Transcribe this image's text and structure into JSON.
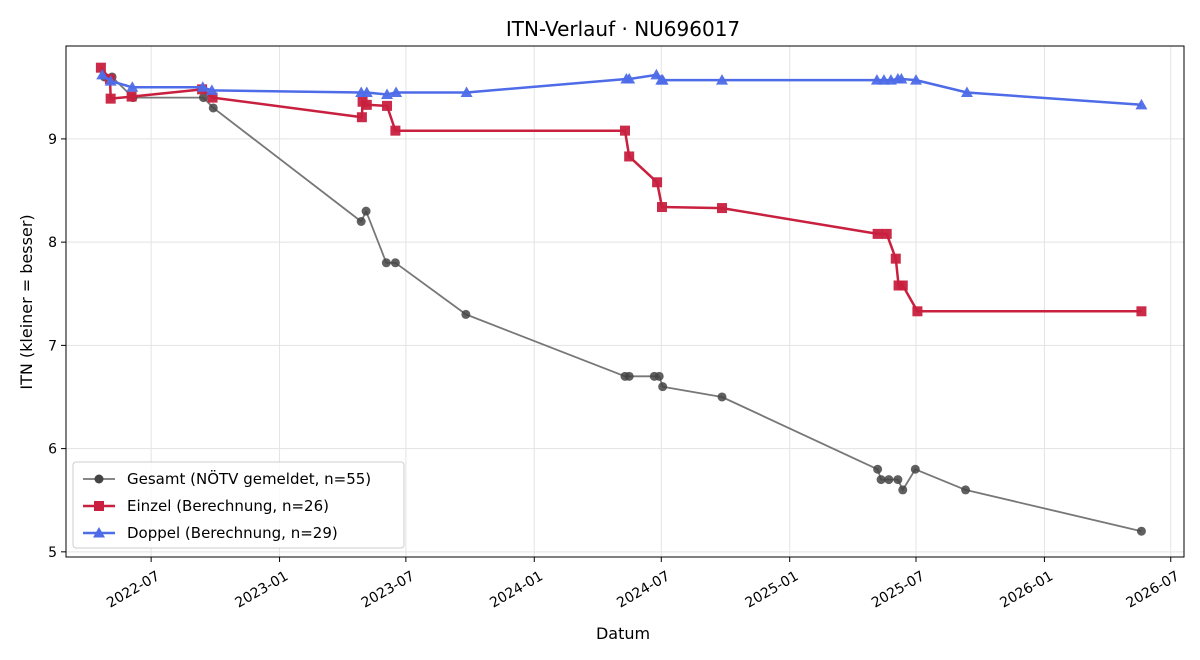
{
  "chart_data": {
    "type": "line",
    "title": "ITN-Verlauf · NU696017",
    "xlabel": "Datum",
    "ylabel": "ITN  (kleiner = besser)",
    "xlim": [
      "2022-03-01",
      "2026-07-20"
    ],
    "ylim": [
      4.95,
      9.9
    ],
    "x_ticks": [
      "2022-07",
      "2023-01",
      "2023-07",
      "2024-01",
      "2024-07",
      "2025-01",
      "2025-07",
      "2026-01",
      "2026-07"
    ],
    "y_ticks": [
      5,
      6,
      7,
      8,
      9
    ],
    "grid": true,
    "legend_position": "lower-left",
    "series": [
      {
        "name": "Gesamt (NÖTV gemeldet, n=55)",
        "color": "#444444",
        "marker": "circle",
        "points": [
          {
            "x": "2022-04-25",
            "y": 9.6
          },
          {
            "x": "2022-05-06",
            "y": 9.6
          },
          {
            "x": "2022-06-05",
            "y": 9.4
          },
          {
            "x": "2022-09-14",
            "y": 9.4
          },
          {
            "x": "2022-09-28",
            "y": 9.3
          },
          {
            "x": "2023-04-28",
            "y": 8.2
          },
          {
            "x": "2023-05-05",
            "y": 8.3
          },
          {
            "x": "2023-06-03",
            "y": 7.8
          },
          {
            "x": "2023-06-16",
            "y": 7.8
          },
          {
            "x": "2023-09-25",
            "y": 7.3
          },
          {
            "x": "2024-05-10",
            "y": 6.7
          },
          {
            "x": "2024-05-16",
            "y": 6.7
          },
          {
            "x": "2024-06-21",
            "y": 6.7
          },
          {
            "x": "2024-06-28",
            "y": 6.7
          },
          {
            "x": "2024-07-03",
            "y": 6.6
          },
          {
            "x": "2024-09-26",
            "y": 6.5
          },
          {
            "x": "2025-05-07",
            "y": 5.8
          },
          {
            "x": "2025-05-12",
            "y": 5.7
          },
          {
            "x": "2025-05-23",
            "y": 5.7
          },
          {
            "x": "2025-06-05",
            "y": 5.7
          },
          {
            "x": "2025-06-12",
            "y": 5.6
          },
          {
            "x": "2025-06-30",
            "y": 5.8
          },
          {
            "x": "2025-09-10",
            "y": 5.6
          },
          {
            "x": "2026-05-20",
            "y": 5.2
          }
        ]
      },
      {
        "name": "Einzel (Berechnung, n=26)",
        "color": "#c8203e",
        "marker": "square",
        "points": [
          {
            "x": "2022-04-20",
            "y": 9.69
          },
          {
            "x": "2022-05-03",
            "y": 9.58
          },
          {
            "x": "2022-05-04",
            "y": 9.39
          },
          {
            "x": "2022-06-03",
            "y": 9.41
          },
          {
            "x": "2022-09-12",
            "y": 9.48
          },
          {
            "x": "2022-09-27",
            "y": 9.4
          },
          {
            "x": "2023-04-29",
            "y": 9.21
          },
          {
            "x": "2023-04-30",
            "y": 9.36
          },
          {
            "x": "2023-05-06",
            "y": 9.33
          },
          {
            "x": "2023-06-04",
            "y": 9.32
          },
          {
            "x": "2023-06-16",
            "y": 9.08
          },
          {
            "x": "2024-05-10",
            "y": 9.08
          },
          {
            "x": "2024-05-16",
            "y": 8.83
          },
          {
            "x": "2024-06-25",
            "y": 8.58
          },
          {
            "x": "2024-07-02",
            "y": 8.34
          },
          {
            "x": "2024-09-26",
            "y": 8.33
          },
          {
            "x": "2025-05-07",
            "y": 8.08
          },
          {
            "x": "2025-05-20",
            "y": 8.08
          },
          {
            "x": "2025-06-02",
            "y": 7.84
          },
          {
            "x": "2025-06-06",
            "y": 7.58
          },
          {
            "x": "2025-06-12",
            "y": 7.58
          },
          {
            "x": "2025-07-03",
            "y": 7.33
          },
          {
            "x": "2026-05-20",
            "y": 7.33
          }
        ]
      },
      {
        "name": "Doppel (Berechnung, n=29)",
        "color": "#4e6be8",
        "marker": "triangle",
        "points": [
          {
            "x": "2022-04-22",
            "y": 9.62
          },
          {
            "x": "2022-05-04",
            "y": 9.56
          },
          {
            "x": "2022-06-04",
            "y": 9.5
          },
          {
            "x": "2022-09-13",
            "y": 9.5
          },
          {
            "x": "2022-09-26",
            "y": 9.47
          },
          {
            "x": "2023-04-28",
            "y": 9.45
          },
          {
            "x": "2023-05-06",
            "y": 9.45
          },
          {
            "x": "2023-06-04",
            "y": 9.43
          },
          {
            "x": "2023-06-17",
            "y": 9.45
          },
          {
            "x": "2023-09-26",
            "y": 9.45
          },
          {
            "x": "2024-05-12",
            "y": 9.58
          },
          {
            "x": "2024-05-16",
            "y": 9.58
          },
          {
            "x": "2024-06-24",
            "y": 9.62
          },
          {
            "x": "2024-07-01",
            "y": 9.57
          },
          {
            "x": "2024-07-03",
            "y": 9.57
          },
          {
            "x": "2024-09-26",
            "y": 9.57
          },
          {
            "x": "2025-05-06",
            "y": 9.57
          },
          {
            "x": "2025-05-16",
            "y": 9.57
          },
          {
            "x": "2025-05-26",
            "y": 9.57
          },
          {
            "x": "2025-06-05",
            "y": 9.58
          },
          {
            "x": "2025-06-10",
            "y": 9.58
          },
          {
            "x": "2025-07-01",
            "y": 9.57
          },
          {
            "x": "2025-09-12",
            "y": 9.45
          },
          {
            "x": "2026-05-20",
            "y": 9.33
          }
        ]
      }
    ]
  }
}
